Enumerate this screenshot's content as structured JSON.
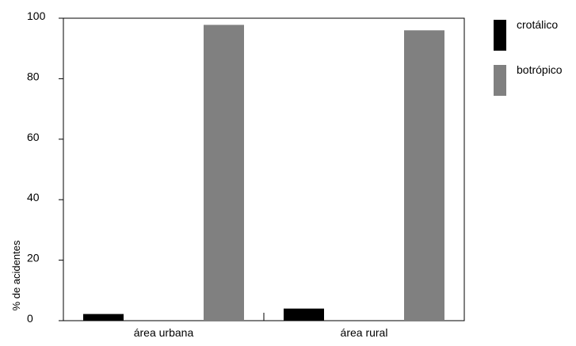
{
  "chart_data": {
    "type": "bar",
    "title": "",
    "xlabel": "",
    "ylabel": "% de acidentes",
    "categories": [
      "área urbana",
      "área rural"
    ],
    "series": [
      {
        "name": "crotálico",
        "color": "#000000",
        "values": [
          2.2,
          4.0
        ]
      },
      {
        "name": "botrópico",
        "color": "#808080",
        "values": [
          97.8,
          96.0
        ]
      }
    ],
    "ylim": [
      0,
      100
    ],
    "yticks": [
      0,
      20,
      40,
      60,
      80,
      100
    ],
    "grid": false,
    "legend_position": "top-right, outside plot"
  }
}
